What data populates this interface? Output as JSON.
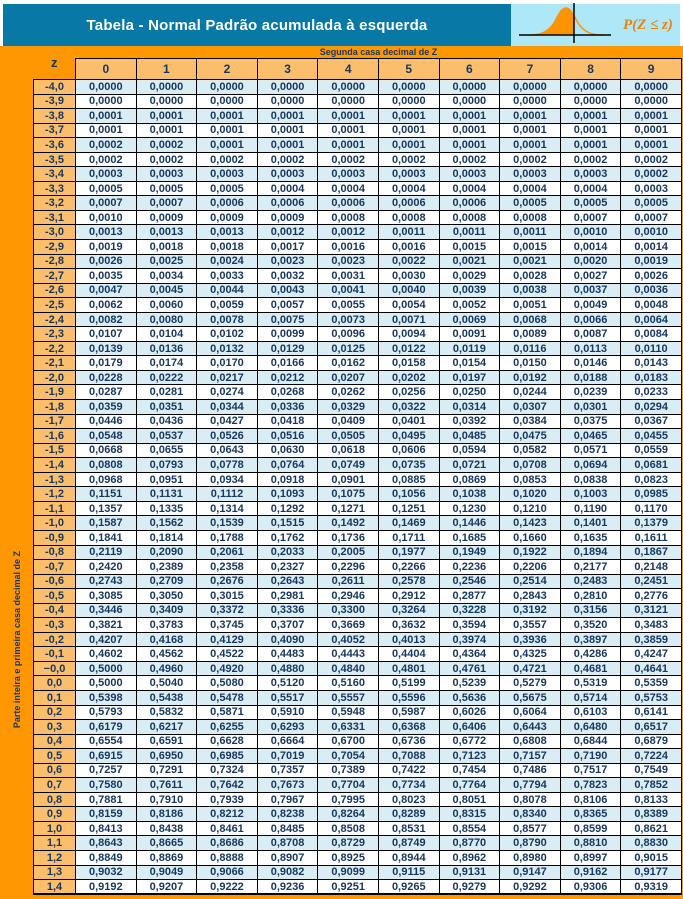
{
  "header": {
    "title": "Tabela - Normal Padrão acumulada à esquerda",
    "prob_label": "P(Z ≤ z)"
  },
  "table": {
    "corner_label": "z",
    "band_label": "Segunda casa decimal de Z",
    "col_headers": [
      "0",
      "1",
      "2",
      "3",
      "4",
      "5",
      "6",
      "7",
      "8",
      "9"
    ],
    "side_label": "Parte inteira e primeira casa decimal de Z",
    "rows": [
      {
        "z": "-4,0",
        "v": [
          "0,0000",
          "0,0000",
          "0,0000",
          "0,0000",
          "0,0000",
          "0,0000",
          "0,0000",
          "0,0000",
          "0,0000",
          "0,0000"
        ]
      },
      {
        "z": "-3,9",
        "v": [
          "0,0000",
          "0,0000",
          "0,0000",
          "0,0000",
          "0,0000",
          "0,0000",
          "0,0000",
          "0,0000",
          "0,0000",
          "0,0000"
        ]
      },
      {
        "z": "-3,8",
        "v": [
          "0,0001",
          "0,0001",
          "0,0001",
          "0,0001",
          "0,0001",
          "0,0001",
          "0,0001",
          "0,0001",
          "0,0001",
          "0,0001"
        ]
      },
      {
        "z": "-3,7",
        "v": [
          "0,0001",
          "0,0001",
          "0,0001",
          "0,0001",
          "0,0001",
          "0,0001",
          "0,0001",
          "0,0001",
          "0,0001",
          "0,0001"
        ]
      },
      {
        "z": "-3,6",
        "v": [
          "0,0002",
          "0,0002",
          "0,0001",
          "0,0001",
          "0,0001",
          "0,0001",
          "0,0001",
          "0,0001",
          "0,0001",
          "0,0001"
        ]
      },
      {
        "z": "-3,5",
        "v": [
          "0,0002",
          "0,0002",
          "0,0002",
          "0,0002",
          "0,0002",
          "0,0002",
          "0,0002",
          "0,0002",
          "0,0002",
          "0,0002"
        ]
      },
      {
        "z": "-3,4",
        "v": [
          "0,0003",
          "0,0003",
          "0,0003",
          "0,0003",
          "0,0003",
          "0,0003",
          "0,0003",
          "0,0003",
          "0,0003",
          "0,0002"
        ]
      },
      {
        "z": "-3,3",
        "v": [
          "0,0005",
          "0,0005",
          "0,0005",
          "0,0004",
          "0,0004",
          "0,0004",
          "0,0004",
          "0,0004",
          "0,0004",
          "0,0003"
        ]
      },
      {
        "z": "-3,2",
        "v": [
          "0,0007",
          "0,0007",
          "0,0006",
          "0,0006",
          "0,0006",
          "0,0006",
          "0,0006",
          "0,0005",
          "0,0005",
          "0,0005"
        ]
      },
      {
        "z": "-3,1",
        "v": [
          "0,0010",
          "0,0009",
          "0,0009",
          "0,0009",
          "0,0008",
          "0,0008",
          "0,0008",
          "0,0008",
          "0,0007",
          "0,0007"
        ]
      },
      {
        "z": "-3,0",
        "v": [
          "0,0013",
          "0,0013",
          "0,0013",
          "0,0012",
          "0,0012",
          "0,0011",
          "0,0011",
          "0,0011",
          "0,0010",
          "0,0010"
        ]
      },
      {
        "z": "-2,9",
        "v": [
          "0,0019",
          "0,0018",
          "0,0018",
          "0,0017",
          "0,0016",
          "0,0016",
          "0,0015",
          "0,0015",
          "0,0014",
          "0,0014"
        ]
      },
      {
        "z": "-2,8",
        "v": [
          "0,0026",
          "0,0025",
          "0,0024",
          "0,0023",
          "0,0023",
          "0,0022",
          "0,0021",
          "0,0021",
          "0,0020",
          "0,0019"
        ]
      },
      {
        "z": "-2,7",
        "v": [
          "0,0035",
          "0,0034",
          "0,0033",
          "0,0032",
          "0,0031",
          "0,0030",
          "0,0029",
          "0,0028",
          "0,0027",
          "0,0026"
        ]
      },
      {
        "z": "-2,6",
        "v": [
          "0,0047",
          "0,0045",
          "0,0044",
          "0,0043",
          "0,0041",
          "0,0040",
          "0,0039",
          "0,0038",
          "0,0037",
          "0,0036"
        ]
      },
      {
        "z": "-2,5",
        "v": [
          "0,0062",
          "0,0060",
          "0,0059",
          "0,0057",
          "0,0055",
          "0,0054",
          "0,0052",
          "0,0051",
          "0,0049",
          "0,0048"
        ]
      },
      {
        "z": "-2,4",
        "v": [
          "0,0082",
          "0,0080",
          "0,0078",
          "0,0075",
          "0,0073",
          "0,0071",
          "0,0069",
          "0,0068",
          "0,0066",
          "0,0064"
        ]
      },
      {
        "z": "-2,3",
        "v": [
          "0,0107",
          "0,0104",
          "0,0102",
          "0,0099",
          "0,0096",
          "0,0094",
          "0,0091",
          "0,0089",
          "0,0087",
          "0,0084"
        ]
      },
      {
        "z": "-2,2",
        "v": [
          "0,0139",
          "0,0136",
          "0,0132",
          "0,0129",
          "0,0125",
          "0,0122",
          "0,0119",
          "0,0116",
          "0,0113",
          "0,0110"
        ]
      },
      {
        "z": "-2,1",
        "v": [
          "0,0179",
          "0,0174",
          "0,0170",
          "0,0166",
          "0,0162",
          "0,0158",
          "0,0154",
          "0,0150",
          "0,0146",
          "0,0143"
        ]
      },
      {
        "z": "-2,0",
        "v": [
          "0,0228",
          "0,0222",
          "0,0217",
          "0,0212",
          "0,0207",
          "0,0202",
          "0,0197",
          "0,0192",
          "0,0188",
          "0,0183"
        ]
      },
      {
        "z": "-1,9",
        "v": [
          "0,0287",
          "0,0281",
          "0,0274",
          "0,0268",
          "0,0262",
          "0,0256",
          "0,0250",
          "0,0244",
          "0,0239",
          "0,0233"
        ]
      },
      {
        "z": "-1,8",
        "v": [
          "0,0359",
          "0,0351",
          "0,0344",
          "0,0336",
          "0,0329",
          "0,0322",
          "0,0314",
          "0,0307",
          "0,0301",
          "0,0294"
        ]
      },
      {
        "z": "-1,7",
        "v": [
          "0,0446",
          "0,0436",
          "0,0427",
          "0,0418",
          "0,0409",
          "0,0401",
          "0,0392",
          "0,0384",
          "0,0375",
          "0,0367"
        ]
      },
      {
        "z": "-1,6",
        "v": [
          "0,0548",
          "0,0537",
          "0,0526",
          "0,0516",
          "0,0505",
          "0,0495",
          "0,0485",
          "0,0475",
          "0,0465",
          "0,0455"
        ]
      },
      {
        "z": "-1,5",
        "v": [
          "0,0668",
          "0,0655",
          "0,0643",
          "0,0630",
          "0,0618",
          "0,0606",
          "0,0594",
          "0,0582",
          "0,0571",
          "0,0559"
        ]
      },
      {
        "z": "-1,4",
        "v": [
          "0,0808",
          "0,0793",
          "0,0778",
          "0,0764",
          "0,0749",
          "0,0735",
          "0,0721",
          "0,0708",
          "0,0694",
          "0,0681"
        ]
      },
      {
        "z": "-1,3",
        "v": [
          "0,0968",
          "0,0951",
          "0,0934",
          "0,0918",
          "0,0901",
          "0,0885",
          "0,0869",
          "0,0853",
          "0,0838",
          "0,0823"
        ]
      },
      {
        "z": "-1,2",
        "v": [
          "0,1151",
          "0,1131",
          "0,1112",
          "0,1093",
          "0,1075",
          "0,1056",
          "0,1038",
          "0,1020",
          "0,1003",
          "0,0985"
        ]
      },
      {
        "z": "-1,1",
        "v": [
          "0,1357",
          "0,1335",
          "0,1314",
          "0,1292",
          "0,1271",
          "0,1251",
          "0,1230",
          "0,1210",
          "0,1190",
          "0,1170"
        ]
      },
      {
        "z": "-1,0",
        "v": [
          "0,1587",
          "0,1562",
          "0,1539",
          "0,1515",
          "0,1492",
          "0,1469",
          "0,1446",
          "0,1423",
          "0,1401",
          "0,1379"
        ]
      },
      {
        "z": "-0,9",
        "v": [
          "0,1841",
          "0,1814",
          "0,1788",
          "0,1762",
          "0,1736",
          "0,1711",
          "0,1685",
          "0,1660",
          "0,1635",
          "0,1611"
        ]
      },
      {
        "z": "-0,8",
        "v": [
          "0,2119",
          "0,2090",
          "0,2061",
          "0,2033",
          "0,2005",
          "0,1977",
          "0,1949",
          "0,1922",
          "0,1894",
          "0,1867"
        ]
      },
      {
        "z": "-0,7",
        "v": [
          "0,2420",
          "0,2389",
          "0,2358",
          "0,2327",
          "0,2296",
          "0,2266",
          "0,2236",
          "0,2206",
          "0,2177",
          "0,2148"
        ]
      },
      {
        "z": "-0,6",
        "v": [
          "0,2743",
          "0,2709",
          "0,2676",
          "0,2643",
          "0,2611",
          "0,2578",
          "0,2546",
          "0,2514",
          "0,2483",
          "0,2451"
        ]
      },
      {
        "z": "-0,5",
        "v": [
          "0,3085",
          "0,3050",
          "0,3015",
          "0,2981",
          "0,2946",
          "0,2912",
          "0,2877",
          "0,2843",
          "0,2810",
          "0,2776"
        ]
      },
      {
        "z": "-0,4",
        "v": [
          "0,3446",
          "0,3409",
          "0,3372",
          "0,3336",
          "0,3300",
          "0,3264",
          "0,3228",
          "0,3192",
          "0,3156",
          "0,3121"
        ]
      },
      {
        "z": "-0,3",
        "v": [
          "0,3821",
          "0,3783",
          "0,3745",
          "0,3707",
          "0,3669",
          "0,3632",
          "0,3594",
          "0,3557",
          "0,3520",
          "0,3483"
        ]
      },
      {
        "z": "-0,2",
        "v": [
          "0,4207",
          "0,4168",
          "0,4129",
          "0,4090",
          "0,4052",
          "0,4013",
          "0,3974",
          "0,3936",
          "0,3897",
          "0,3859"
        ]
      },
      {
        "z": "-0,1",
        "v": [
          "0,4602",
          "0,4562",
          "0,4522",
          "0,4483",
          "0,4443",
          "0,4404",
          "0,4364",
          "0,4325",
          "0,4286",
          "0,4247"
        ]
      },
      {
        "z": "−0,0",
        "v": [
          "0,5000",
          "0,4960",
          "0,4920",
          "0,4880",
          "0,4840",
          "0,4801",
          "0,4761",
          "0,4721",
          "0,4681",
          "0,4641"
        ]
      },
      {
        "z": "0,0",
        "v": [
          "0,5000",
          "0,5040",
          "0,5080",
          "0,5120",
          "0,5160",
          "0,5199",
          "0,5239",
          "0,5279",
          "0,5319",
          "0,5359"
        ]
      },
      {
        "z": "0,1",
        "v": [
          "0,5398",
          "0,5438",
          "0,5478",
          "0,5517",
          "0,5557",
          "0,5596",
          "0,5636",
          "0,5675",
          "0,5714",
          "0,5753"
        ]
      },
      {
        "z": "0,2",
        "v": [
          "0,5793",
          "0,5832",
          "0,5871",
          "0,5910",
          "0,5948",
          "0,5987",
          "0,6026",
          "0,6064",
          "0,6103",
          "0,6141"
        ]
      },
      {
        "z": "0,3",
        "v": [
          "0,6179",
          "0,6217",
          "0,6255",
          "0,6293",
          "0,6331",
          "0,6368",
          "0,6406",
          "0,6443",
          "0,6480",
          "0,6517"
        ]
      },
      {
        "z": "0,4",
        "v": [
          "0,6554",
          "0,6591",
          "0,6628",
          "0,6664",
          "0,6700",
          "0,6736",
          "0,6772",
          "0,6808",
          "0,6844",
          "0,6879"
        ]
      },
      {
        "z": "0,5",
        "v": [
          "0,6915",
          "0,6950",
          "0,6985",
          "0,7019",
          "0,7054",
          "0,7088",
          "0,7123",
          "0,7157",
          "0,7190",
          "0,7224"
        ]
      },
      {
        "z": "0,6",
        "v": [
          "0,7257",
          "0,7291",
          "0,7324",
          "0,7357",
          "0,7389",
          "0,7422",
          "0,7454",
          "0,7486",
          "0,7517",
          "0,7549"
        ]
      },
      {
        "z": "0,7",
        "v": [
          "0,7580",
          "0,7611",
          "0,7642",
          "0,7673",
          "0,7704",
          "0,7734",
          "0,7764",
          "0,7794",
          "0,7823",
          "0,7852"
        ]
      },
      {
        "z": "0,8",
        "v": [
          "0,7881",
          "0,7910",
          "0,7939",
          "0,7967",
          "0,7995",
          "0,8023",
          "0,8051",
          "0,8078",
          "0,8106",
          "0,8133"
        ]
      },
      {
        "z": "0,9",
        "v": [
          "0,8159",
          "0,8186",
          "0,8212",
          "0,8238",
          "0,8264",
          "0,8289",
          "0,8315",
          "0,8340",
          "0,8365",
          "0,8389"
        ]
      },
      {
        "z": "1,0",
        "v": [
          "0,8413",
          "0,8438",
          "0,8461",
          "0,8485",
          "0,8508",
          "0,8531",
          "0,8554",
          "0,8577",
          "0,8599",
          "0,8621"
        ]
      },
      {
        "z": "1,1",
        "v": [
          "0,8643",
          "0,8665",
          "0,8686",
          "0,8708",
          "0,8729",
          "0,8749",
          "0,8770",
          "0,8790",
          "0,8810",
          "0,8830"
        ]
      },
      {
        "z": "1,2",
        "v": [
          "0,8849",
          "0,8869",
          "0,8888",
          "0,8907",
          "0,8925",
          "0,8944",
          "0,8962",
          "0,8980",
          "0,8997",
          "0,9015"
        ]
      },
      {
        "z": "1,3",
        "v": [
          "0,9032",
          "0,9049",
          "0,9066",
          "0,9082",
          "0,9099",
          "0,9115",
          "0,9131",
          "0,9147",
          "0,9162",
          "0,9177"
        ]
      },
      {
        "z": "1,4",
        "v": [
          "0,9192",
          "0,9207",
          "0,9222",
          "0,9236",
          "0,9251",
          "0,9265",
          "0,9279",
          "0,9292",
          "0,9306",
          "0,9319"
        ]
      }
    ]
  },
  "colors": {
    "teal": "#0878A6",
    "orange": "#FE9701",
    "light_orange": "#FBBE6C",
    "icon_box_blue": "#AEE7F7",
    "row_blue": "#DAEDF4",
    "navy": "#17375E",
    "curve_orange": "#FC9303",
    "prob_text_orange": "#E8820C"
  }
}
